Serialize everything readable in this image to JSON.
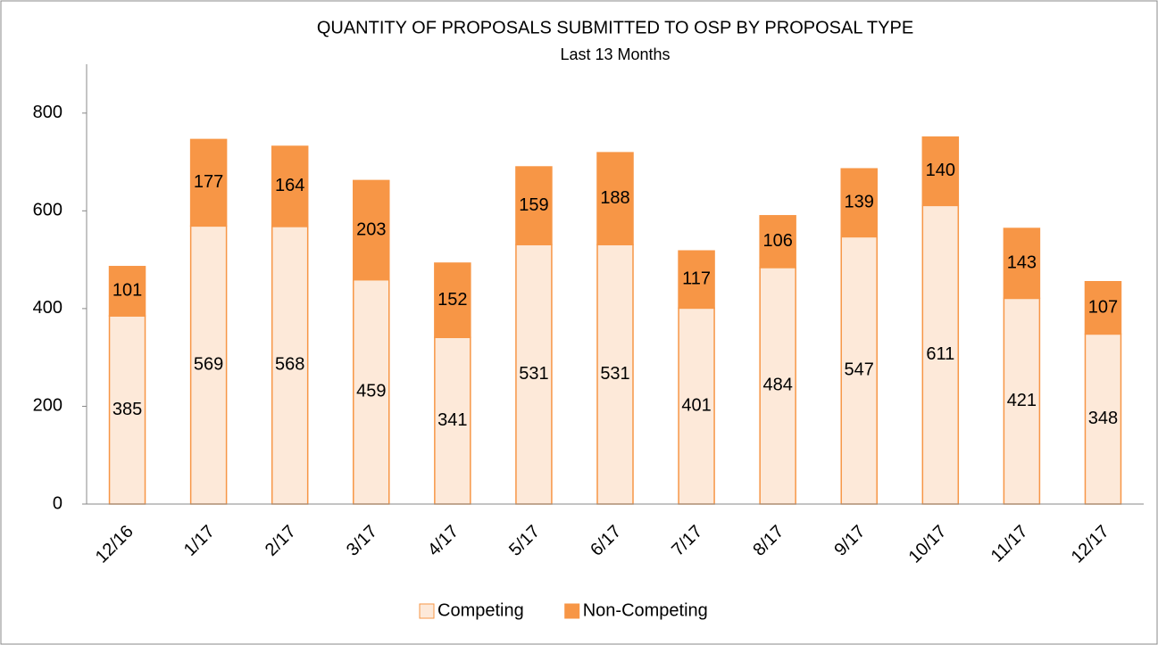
{
  "chart_data": {
    "type": "stacked_bar",
    "title": "QUANTITY OF PROPOSALS SUBMITTED TO OSP BY PROPOSAL TYPE",
    "subtitle": "Last 13 Months",
    "categories": [
      "12/16",
      "1/17",
      "2/17",
      "3/17",
      "4/17",
      "5/17",
      "6/17",
      "7/17",
      "8/17",
      "9/17",
      "10/17",
      "11/17",
      "12/17"
    ],
    "series": [
      {
        "name": "Competing",
        "color": "#fde9d9",
        "edge": "#f79646",
        "values": [
          385,
          569,
          568,
          459,
          341,
          531,
          531,
          401,
          484,
          547,
          611,
          421,
          348
        ]
      },
      {
        "name": "Non-Competing",
        "color": "#f79646",
        "edge": "#f79646",
        "values": [
          101,
          177,
          164,
          203,
          152,
          159,
          188,
          117,
          106,
          139,
          140,
          143,
          107
        ]
      }
    ],
    "ylim": [
      0,
      900
    ],
    "yticks": [
      0,
      200,
      400,
      600,
      800
    ],
    "grid": false,
    "legend": "bottom"
  }
}
